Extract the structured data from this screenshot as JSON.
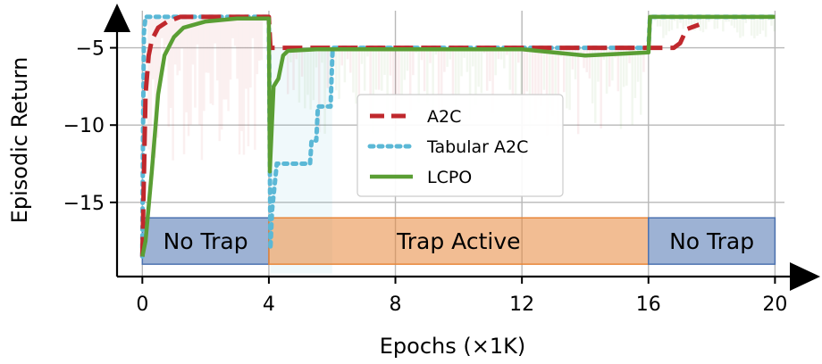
{
  "chart_data": {
    "type": "line",
    "xlabel": "Epochs (×1K)",
    "ylabel": "Episodic Return",
    "xlim": [
      -0.8,
      20.3
    ],
    "ylim": [
      -19.8,
      -2.6
    ],
    "x_ticks": [
      "0",
      "4",
      "8",
      "12",
      "16",
      "20"
    ],
    "y_ticks": [
      "−5",
      "−10",
      "−15"
    ],
    "grid": true,
    "legend": {
      "placement": "center",
      "entries": [
        "A2C",
        "Tabular A2C",
        "LCPO"
      ]
    },
    "regions": [
      {
        "label": "No Trap",
        "x_start": 0,
        "x_end": 4,
        "color": "#4c72b0"
      },
      {
        "label": "Trap Active",
        "x_start": 4,
        "x_end": 16,
        "color": "#e8873a"
      },
      {
        "label": "No Trap",
        "x_start": 16,
        "x_end": 20,
        "color": "#4c72b0"
      }
    ],
    "series": [
      {
        "name": "A2C",
        "color": "#c0282d",
        "style": "dashed",
        "x": [
          0,
          0.1,
          0.2,
          0.3,
          0.5,
          0.8,
          1.2,
          4.0,
          4.05,
          4.2,
          6,
          10,
          14,
          16,
          16.8,
          17.0,
          17.2,
          17.6
        ],
        "y": [
          -18.5,
          -8.0,
          -5.5,
          -4.5,
          -3.7,
          -3.3,
          -3.0,
          -3.0,
          -5.0,
          -5.0,
          -5.0,
          -5.0,
          -5.0,
          -5.0,
          -5.0,
          -4.7,
          -3.8,
          -3.5
        ]
      },
      {
        "name": "Tabular A2C",
        "color": "#5bb8d6",
        "style": "dotted",
        "x": [
          0,
          0.02,
          0.05,
          0.1,
          0.3,
          1.0,
          4.0,
          4.05,
          4.1,
          4.25,
          5.3,
          5.35,
          5.5,
          5.55,
          5.95,
          6.0,
          6.02,
          8,
          12,
          16,
          16.05,
          20
        ],
        "y": [
          -18.5,
          -11.0,
          -4.0,
          -3.0,
          -3.0,
          -3.0,
          -3.0,
          -18.0,
          -15.5,
          -12.5,
          -12.5,
          -11.0,
          -11.0,
          -8.8,
          -8.8,
          -6.0,
          -5.0,
          -5.0,
          -5.0,
          -5.0,
          -3.0,
          -3.0
        ]
      },
      {
        "name": "LCPO",
        "color": "#5a9e34",
        "style": "solid",
        "x": [
          0,
          0.1,
          0.3,
          0.5,
          0.7,
          1.0,
          1.3,
          2.0,
          3.0,
          4.0,
          4.03,
          4.15,
          4.3,
          4.45,
          4.6,
          5.5,
          8,
          10,
          12,
          13,
          14,
          15,
          16,
          16.05,
          20
        ],
        "y": [
          -18.5,
          -17.5,
          -13.0,
          -8.0,
          -5.5,
          -4.3,
          -3.7,
          -3.3,
          -3.1,
          -3.1,
          -13.0,
          -7.5,
          -7.0,
          -5.5,
          -5.2,
          -5.1,
          -5.1,
          -5.1,
          -5.1,
          -5.3,
          -5.5,
          -5.4,
          -5.3,
          -3.0,
          -3.0
        ]
      }
    ]
  }
}
